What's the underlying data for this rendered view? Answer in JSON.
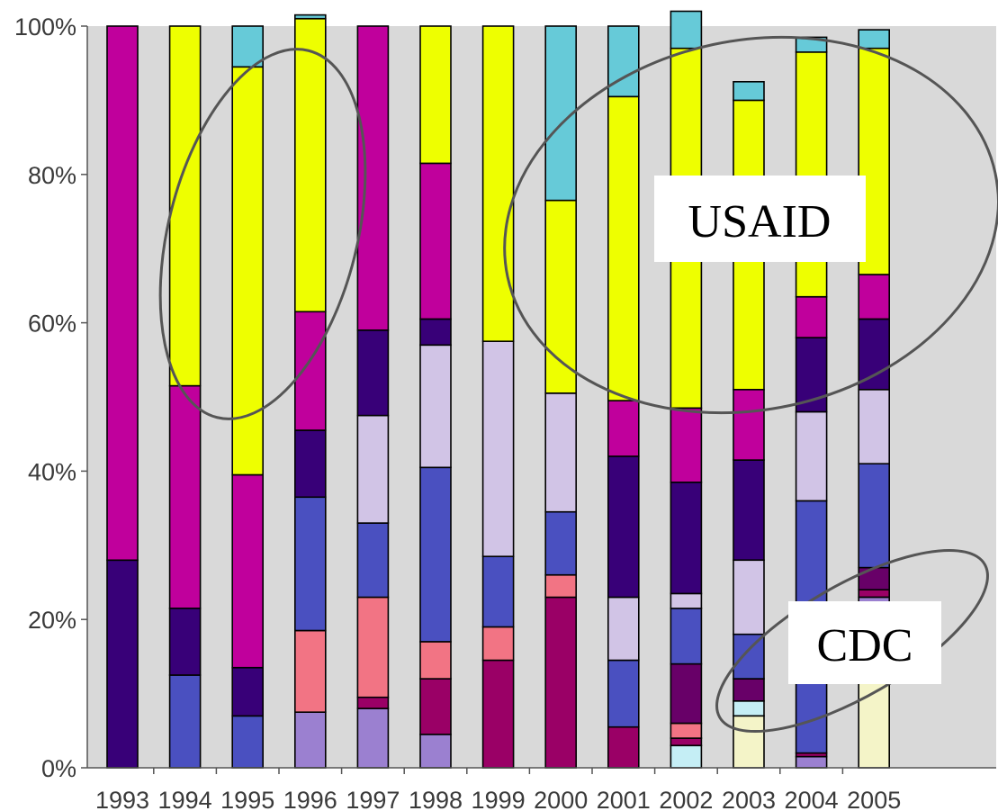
{
  "chart_data": {
    "type": "bar",
    "stacked": "percent",
    "title": "",
    "xlabel": "",
    "ylabel": "",
    "ylim": [
      0,
      100
    ],
    "y_ticks": [
      "0%",
      "20%",
      "40%",
      "60%",
      "80%",
      "100%"
    ],
    "categories": [
      "1993",
      "1994",
      "1995",
      "1996",
      "1997",
      "1998",
      "1999",
      "2000",
      "2001",
      "2002",
      "2003",
      "2004",
      "2005"
    ],
    "grid": false,
    "plot_background": "#d9d9d9",
    "series": [
      {
        "color": "#f4f4c8",
        "values": [
          0,
          0,
          0,
          0,
          0,
          0,
          0,
          0,
          0,
          0,
          7,
          0,
          21
        ]
      },
      {
        "color": "#c5eef5",
        "values": [
          0,
          0,
          0,
          0,
          0,
          0,
          0,
          0,
          0,
          3,
          2,
          0,
          0
        ]
      },
      {
        "color": "#9b80d0",
        "values": [
          0,
          0,
          0,
          7.5,
          8,
          4.5,
          0,
          0,
          0,
          0,
          0,
          1.5,
          2
        ]
      },
      {
        "color": "#9a0066",
        "values": [
          0,
          0,
          0,
          0,
          1.5,
          7.5,
          14.5,
          23,
          5.5,
          1,
          0,
          0.5,
          1
        ]
      },
      {
        "color": "#f27484",
        "values": [
          0,
          0,
          0,
          11,
          13.5,
          5,
          4.5,
          3,
          0,
          2,
          0,
          0,
          0
        ]
      },
      {
        "color": "#680068",
        "values": [
          0,
          0,
          0,
          0,
          0,
          0,
          0,
          0,
          0,
          8,
          3,
          0,
          3
        ]
      },
      {
        "color": "#4a50c0",
        "values": [
          0,
          12.5,
          7,
          18,
          10,
          23.5,
          9.5,
          8.5,
          9,
          7.5,
          6,
          34,
          14
        ]
      },
      {
        "color": "#d1c4e6",
        "values": [
          0,
          0,
          0,
          0,
          14.5,
          16.5,
          29,
          16,
          8.5,
          2,
          10,
          12,
          10
        ]
      },
      {
        "color": "#380078",
        "values": [
          28,
          9,
          6.5,
          9,
          11.5,
          3.5,
          0,
          0,
          19,
          15,
          13.5,
          10,
          9.5
        ]
      },
      {
        "color": "#c0009c",
        "values": [
          72,
          30,
          26,
          16,
          41,
          21,
          0,
          0,
          7.5,
          10,
          9.5,
          5.5,
          6
        ]
      },
      {
        "color": "#eeff00",
        "values": [
          0,
          48.5,
          55,
          39.5,
          0,
          18.5,
          42.5,
          26,
          41,
          48.5,
          39,
          33,
          30.5
        ]
      },
      {
        "color": "#66cad8",
        "values": [
          0,
          0,
          5.5,
          0.5,
          0,
          0,
          0,
          23.5,
          9.5,
          5,
          2.5,
          2,
          2.5
        ]
      }
    ],
    "annotations": [
      {
        "text": "USAID"
      },
      {
        "text": "CDC"
      }
    ]
  }
}
